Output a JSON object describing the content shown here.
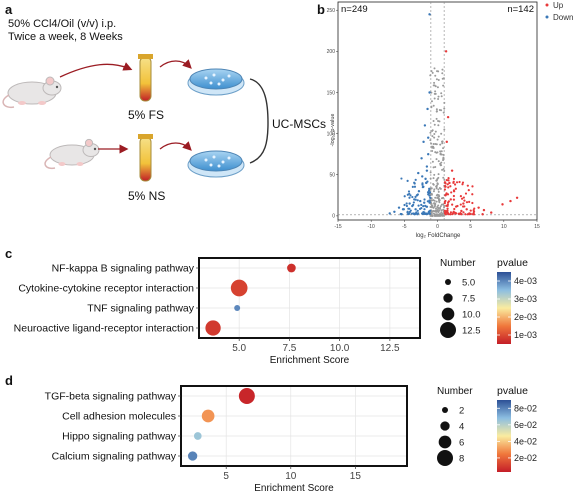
{
  "panels": {
    "a": {
      "label": "a",
      "treatment_lines": [
        "50% CCl4/Oil (v/v) i.p.",
        "Twice a week, 8 Weeks"
      ],
      "serum_fs": "5% FS",
      "serum_ns": "5% NS",
      "cells": "UC-MSCs",
      "icons": [
        "mouse-icon",
        "blood-tube-icon",
        "petri-dish-icon"
      ]
    },
    "b": {
      "label": "b",
      "count_down": "n=249",
      "count_up": "n=142",
      "legend": [
        {
          "name": "Up",
          "color": "#e8393a"
        },
        {
          "name": "Down",
          "color": "#3b78b7"
        }
      ],
      "xlabel": "log₂ FoldChange",
      "ylabel": "-log₁₀ p-value",
      "xticks": [
        "-15",
        "-10",
        "-5",
        "0",
        "5",
        "10",
        "15"
      ],
      "yticks": [
        "0",
        "50",
        "100",
        "150",
        "200",
        "250"
      ]
    },
    "c": {
      "label": "c",
      "number_title": "Number",
      "pvalue_title": "pvalue"
    },
    "d": {
      "label": "d",
      "number_title": "Number",
      "pvalue_title": "pvalue"
    }
  },
  "chart_data": [
    {
      "id": "volcano",
      "type": "scatter",
      "xlabel": "log₂ FoldChange",
      "ylabel": "-log₁₀ p-value",
      "xlim": [
        -15,
        15
      ],
      "ylim": [
        -5,
        260
      ],
      "threshold_x": [
        -1,
        1
      ],
      "threshold_y": 1.3,
      "counts": {
        "down": 249,
        "up": 142
      },
      "series": [
        {
          "name": "Down",
          "color": "#3b78b7",
          "points": [
            [
              -4.5,
              4
            ],
            [
              -5.2,
              8
            ],
            [
              -3.8,
              12
            ],
            [
              -2.6,
              18
            ],
            [
              -3.1,
              25
            ],
            [
              -2.2,
              35
            ],
            [
              -1.8,
              45
            ],
            [
              -2.9,
              52
            ],
            [
              -1.6,
              60
            ],
            [
              -3.5,
              20
            ],
            [
              -4.2,
              15
            ],
            [
              -1.4,
              75
            ],
            [
              -2.1,
              90
            ],
            [
              -1.9,
              110
            ],
            [
              -1.5,
              130
            ],
            [
              -2.4,
              70
            ],
            [
              -1.3,
              28
            ],
            [
              -1.7,
              40
            ],
            [
              -6.5,
              5
            ],
            [
              -5.8,
              10
            ],
            [
              -7.2,
              3
            ],
            [
              -1.2,
              150
            ],
            [
              -2.8,
              30
            ],
            [
              -3.3,
              8
            ],
            [
              -1.1,
              22
            ],
            [
              -2.0,
              16
            ],
            [
              -1.6,
              55
            ],
            [
              -1.4,
              95
            ],
            [
              -2.3,
              48
            ],
            [
              -1.2,
              245
            ]
          ]
        },
        {
          "name": "Up",
          "color": "#e8393a",
          "points": [
            [
              1.5,
              4
            ],
            [
              2.8,
              3
            ],
            [
              3.6,
              6
            ],
            [
              4.4,
              8
            ],
            [
              5.5,
              5
            ],
            [
              6.2,
              10
            ],
            [
              7.0,
              7
            ],
            [
              8.1,
              4
            ],
            [
              9.8,
              14
            ],
            [
              11.0,
              18
            ],
            [
              12.0,
              22
            ],
            [
              1.8,
              40
            ],
            [
              2.2,
              55
            ],
            [
              1.4,
              90
            ],
            [
              1.6,
              120
            ],
            [
              2.5,
              30
            ],
            [
              3.0,
              12
            ],
            [
              1.3,
              200
            ],
            [
              1.2,
              25
            ],
            [
              2.0,
              20
            ],
            [
              4.8,
              3
            ],
            [
              6.8,
              2
            ],
            [
              3.9,
              15
            ]
          ]
        }
      ]
    },
    {
      "id": "kegg-c",
      "type": "scatter",
      "xlabel": "Enrichment Score",
      "xlim": [
        3,
        14
      ],
      "xticks": [
        5.0,
        7.5,
        10.0,
        12.5
      ],
      "categories": [
        "NF-kappa B signaling pathway",
        "Cytokine-cytokine receptor interaction",
        "TNF signaling pathway",
        "Neuroactive ligand-receptor interaction"
      ],
      "enrichment": [
        7.6,
        5.0,
        4.9,
        3.7
      ],
      "number": [
        7,
        13,
        5,
        12
      ],
      "pvalue": [
        0.0007,
        0.0009,
        0.004,
        0.0008
      ],
      "size_legend": [
        5.0,
        7.5,
        10.0,
        12.5
      ],
      "color_scale": {
        "min": 0.0005,
        "max": 0.0045,
        "ticks": [
          "1e-03",
          "2e-03",
          "3e-03",
          "4e-03"
        ],
        "tick_values": [
          0.001,
          0.002,
          0.003,
          0.004
        ]
      }
    },
    {
      "id": "kegg-d",
      "type": "scatter",
      "xlabel": "Enrichment Score",
      "xlim": [
        1.5,
        19
      ],
      "xticks": [
        5,
        10,
        15
      ],
      "categories": [
        "TGF-beta signaling pathway",
        "Cell adhesion molecules",
        "Hippo signaling pathway",
        "Calcium signaling pathway"
      ],
      "enrichment": [
        6.6,
        3.6,
        2.8,
        2.4
      ],
      "number": [
        8,
        6,
        3,
        4
      ],
      "pvalue": [
        0.005,
        0.03,
        0.065,
        0.08
      ],
      "size_legend": [
        2,
        4,
        6,
        8
      ],
      "color_scale": {
        "min": 0.003,
        "max": 0.09,
        "ticks": [
          "2e-02",
          "4e-02",
          "6e-02",
          "8e-02"
        ],
        "tick_values": [
          0.02,
          0.04,
          0.06,
          0.08
        ]
      }
    }
  ]
}
